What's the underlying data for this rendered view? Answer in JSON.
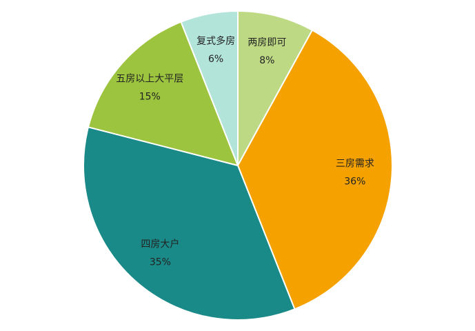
{
  "chart_data": {
    "type": "pie",
    "categories": [
      "两房即可",
      "三房需求",
      "四房大户",
      "五房以上大平层",
      "复式多房"
    ],
    "values": [
      8,
      36,
      35,
      15,
      6
    ],
    "value_labels": [
      "8%",
      "36%",
      "35%",
      "15%",
      "6%"
    ],
    "colors": [
      "#bdd984",
      "#f5a200",
      "#1a8a88",
      "#9cc43e",
      "#b3e4da"
    ]
  }
}
